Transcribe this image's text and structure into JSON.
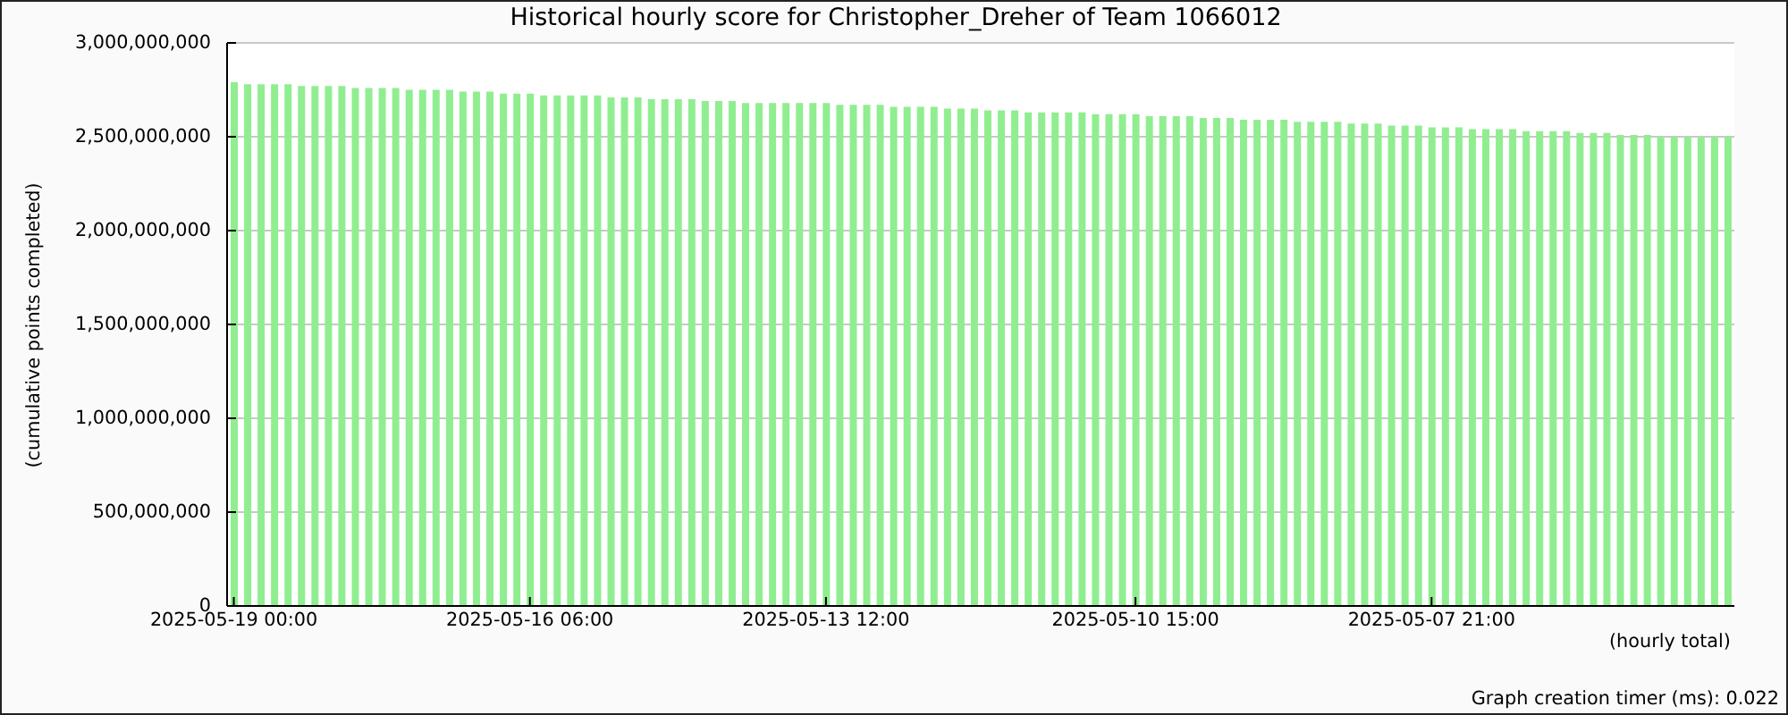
{
  "chart_data": {
    "type": "bar",
    "title": "Historical hourly score for Christopher_Dreher of Team 1066012",
    "xlabel": "(hourly total)",
    "ylabel": "(cumulative points completed)",
    "annotations": [
      "Graph creation timer (ms): 0.022"
    ],
    "categories": [
      "2025-05-19 00:00",
      null,
      null,
      null,
      null,
      null,
      null,
      null,
      null,
      null,
      null,
      null,
      null,
      null,
      null,
      null,
      null,
      null,
      null,
      null,
      null,
      null,
      "2025-05-16 06:00",
      null,
      null,
      null,
      null,
      null,
      null,
      null,
      null,
      null,
      null,
      null,
      null,
      null,
      null,
      null,
      null,
      null,
      null,
      null,
      null,
      null,
      "2025-05-13 12:00",
      null,
      null,
      null,
      null,
      null,
      null,
      null,
      null,
      null,
      null,
      null,
      null,
      null,
      null,
      null,
      null,
      null,
      null,
      null,
      null,
      null,
      null,
      "2025-05-10 15:00",
      null,
      null,
      null,
      null,
      null,
      null,
      null,
      null,
      null,
      null,
      null,
      null,
      null,
      null,
      null,
      null,
      null,
      null,
      null,
      null,
      null,
      "2025-05-07 21:00",
      null,
      null,
      null,
      null,
      null,
      null,
      null,
      null,
      null,
      null,
      null,
      null,
      null,
      null,
      null,
      null,
      null,
      null,
      null,
      null,
      null,
      null
    ],
    "values": [
      2790000000,
      2780000000,
      2780000000,
      2780000000,
      2780000000,
      2770000000,
      2770000000,
      2770000000,
      2770000000,
      2760000000,
      2760000000,
      2760000000,
      2760000000,
      2750000000,
      2750000000,
      2750000000,
      2750000000,
      2740000000,
      2740000000,
      2740000000,
      2730000000,
      2730000000,
      2730000000,
      2720000000,
      2720000000,
      2720000000,
      2720000000,
      2720000000,
      2710000000,
      2710000000,
      2710000000,
      2700000000,
      2700000000,
      2700000000,
      2700000000,
      2690000000,
      2690000000,
      2690000000,
      2680000000,
      2680000000,
      2680000000,
      2680000000,
      2680000000,
      2680000000,
      2680000000,
      2670000000,
      2670000000,
      2670000000,
      2670000000,
      2660000000,
      2660000000,
      2660000000,
      2660000000,
      2650000000,
      2650000000,
      2650000000,
      2640000000,
      2640000000,
      2640000000,
      2630000000,
      2630000000,
      2630000000,
      2630000000,
      2630000000,
      2620000000,
      2620000000,
      2620000000,
      2620000000,
      2610000000,
      2610000000,
      2610000000,
      2610000000,
      2600000000,
      2600000000,
      2600000000,
      2590000000,
      2590000000,
      2590000000,
      2590000000,
      2580000000,
      2580000000,
      2580000000,
      2580000000,
      2570000000,
      2570000000,
      2570000000,
      2560000000,
      2560000000,
      2560000000,
      2550000000,
      2550000000,
      2550000000,
      2540000000,
      2540000000,
      2540000000,
      2540000000,
      2530000000,
      2530000000,
      2530000000,
      2530000000,
      2520000000,
      2520000000,
      2520000000,
      2510000000,
      2510000000,
      2510000000,
      2500000000,
      2500000000,
      2500000000,
      2500000000,
      2500000000,
      2500000000
    ],
    "color": "#90ee90",
    "ylim": [
      0,
      3000000000
    ],
    "yticks": [
      {
        "value": 0,
        "label": "0"
      },
      {
        "value": 500000000,
        "label": "500,000,000"
      },
      {
        "value": 1000000000,
        "label": "1,000,000,000"
      },
      {
        "value": 1500000000,
        "label": "1,500,000,000"
      },
      {
        "value": 2000000000,
        "label": "2,000,000,000"
      },
      {
        "value": 2500000000,
        "label": "2,500,000,000"
      },
      {
        "value": 3000000000,
        "label": "3,000,000,000"
      }
    ],
    "grid": "y"
  }
}
